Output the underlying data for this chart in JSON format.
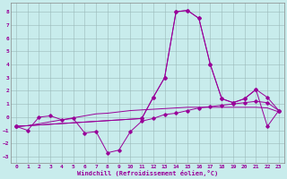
{
  "xlabel": "Windchill (Refroidissement éolien,°C)",
  "background_color": "#c8ecec",
  "grid_color": "#9ab8b8",
  "line_color": "#990099",
  "xlim": [
    -0.5,
    23.5
  ],
  "ylim": [
    -3.5,
    8.7
  ],
  "xticks": [
    0,
    1,
    2,
    3,
    4,
    5,
    6,
    7,
    8,
    9,
    10,
    11,
    12,
    13,
    14,
    15,
    16,
    17,
    18,
    19,
    20,
    21,
    22,
    23
  ],
  "yticks": [
    -3,
    -2,
    -1,
    0,
    1,
    2,
    3,
    4,
    5,
    6,
    7,
    8
  ],
  "series1_x": [
    0,
    1,
    2,
    3,
    4,
    5,
    6,
    7,
    8,
    9,
    10,
    11,
    12,
    13,
    14,
    15,
    16,
    17,
    18,
    19,
    20,
    21,
    22,
    23
  ],
  "series1_y": [
    -0.7,
    -1.0,
    0.0,
    0.1,
    -0.2,
    -0.1,
    -1.2,
    -1.1,
    -2.7,
    -2.5,
    -1.1,
    -0.3,
    -0.1,
    0.2,
    0.3,
    0.5,
    0.7,
    0.8,
    0.9,
    1.0,
    1.1,
    1.2,
    1.1,
    0.5
  ],
  "series2_x": [
    0,
    1,
    2,
    3,
    4,
    5,
    6,
    7,
    8,
    9,
    10,
    11,
    12,
    13,
    14,
    15,
    16,
    17,
    18,
    19,
    20,
    21,
    22,
    23
  ],
  "series2_y": [
    -0.7,
    -0.65,
    -0.5,
    -0.35,
    -0.2,
    -0.05,
    0.1,
    0.25,
    0.3,
    0.4,
    0.5,
    0.55,
    0.6,
    0.65,
    0.7,
    0.75,
    0.75,
    0.75,
    0.75,
    0.75,
    0.75,
    0.75,
    0.7,
    0.4
  ],
  "series3_x": [
    0,
    11,
    12,
    13,
    14,
    15,
    16,
    17,
    18,
    19,
    20,
    21,
    22,
    23
  ],
  "series3_y": [
    -0.7,
    -0.1,
    1.5,
    3.0,
    8.0,
    8.1,
    7.5,
    4.0,
    1.4,
    1.1,
    1.4,
    2.1,
    1.5,
    0.5
  ],
  "series4_x": [
    0,
    11,
    12,
    13,
    14,
    15,
    16,
    17,
    18,
    19,
    20,
    21,
    22,
    23
  ],
  "series4_y": [
    -0.7,
    -0.1,
    1.5,
    3.0,
    8.0,
    8.1,
    7.5,
    4.0,
    1.4,
    1.1,
    1.4,
    2.1,
    -0.7,
    0.5
  ]
}
